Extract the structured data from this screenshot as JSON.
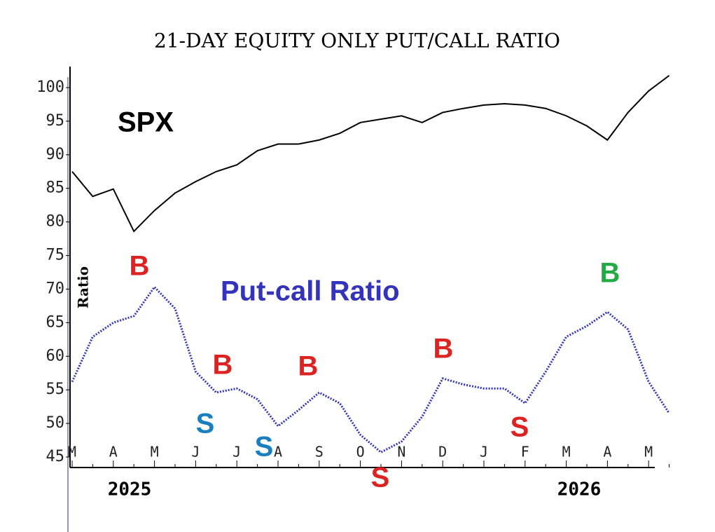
{
  "chart_data": {
    "type": "line",
    "title": "21-DAY EQUITY ONLY PUT/CALL RATIO",
    "y_axis_label": "Ratio",
    "categories": [
      "M",
      null,
      "A",
      null,
      "M",
      null,
      "J",
      null,
      "J",
      null,
      "A",
      null,
      "S",
      null,
      "O",
      null,
      "N",
      null,
      "D",
      null,
      "J",
      null,
      "F",
      null,
      "M",
      null,
      "A",
      null,
      "M",
      null
    ],
    "year_labels": [
      "2025",
      "2026"
    ],
    "series": [
      {
        "name": "SPX",
        "color": "#000000",
        "values": [
          87.5,
          83.8,
          84.9,
          78.6,
          81.7,
          84.3,
          86,
          87.5,
          88.5,
          90.6,
          91.6,
          91.6,
          92.2,
          93.2,
          94.8,
          95.3,
          95.8,
          94.8,
          96.3,
          96.9,
          97.4,
          97.6,
          97.4,
          96.9,
          95.8,
          94.3,
          92.2,
          96.3,
          99.5,
          101.8
        ]
      },
      {
        "name": "Put-call Ratio",
        "color": "#3333bb",
        "values": [
          56.2,
          62.9,
          65,
          66,
          70.3,
          67.1,
          57.7,
          54.6,
          55.2,
          53.6,
          49.6,
          52,
          54.6,
          53,
          48.3,
          45.7,
          47.3,
          51,
          56.7,
          55.8,
          55.2,
          55.2,
          53,
          57.7,
          62.9,
          64.5,
          66.6,
          64,
          56.2,
          51.5
        ]
      }
    ],
    "annotations": [
      {
        "text": "B",
        "color": "#dd2222"
      },
      {
        "text": "S",
        "color": "#1a7fc0"
      },
      {
        "text": "B",
        "color": "#dd2222"
      },
      {
        "text": "S",
        "color": "#1a7fc0"
      },
      {
        "text": "B",
        "color": "#dd2222"
      },
      {
        "text": "S",
        "color": "#dd2222"
      },
      {
        "text": "B",
        "color": "#dd2222"
      },
      {
        "text": "S",
        "color": "#dd2222"
      },
      {
        "text": "B",
        "color": "#22aa44"
      }
    ],
    "ylim": [
      45,
      100
    ],
    "yticks": [
      45,
      50,
      55,
      60,
      65,
      70,
      75,
      80,
      85,
      90,
      95,
      100
    ]
  }
}
